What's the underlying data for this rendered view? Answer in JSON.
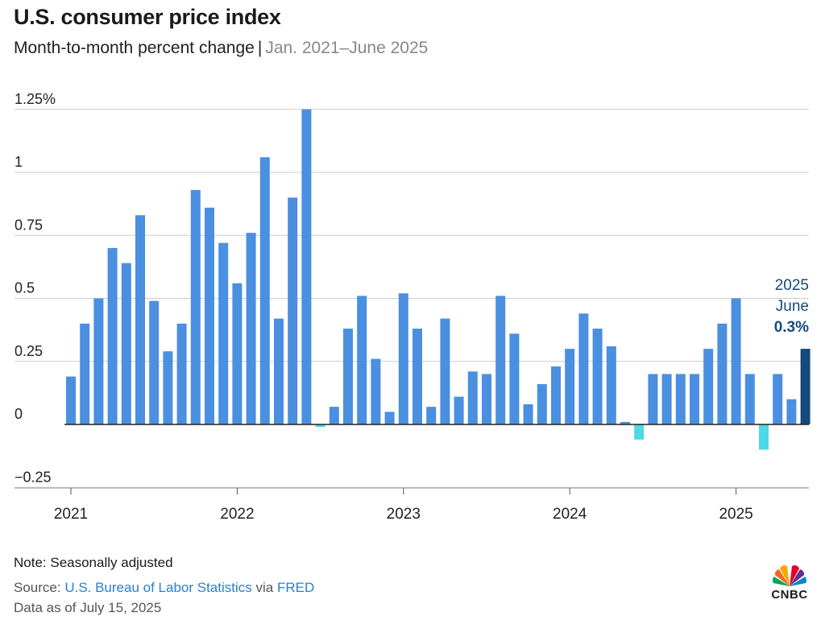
{
  "header": {
    "title": "U.S. consumer price index",
    "subtitle": "Month-to-month percent change",
    "separator": "|",
    "range": "Jan. 2021–June 2025"
  },
  "colors": {
    "positive": "#4a8fe0",
    "negative": "#4dd9e8",
    "highlight": "#174a7c",
    "grid": "#cccccc",
    "zero": "#222222"
  },
  "annotation": {
    "year": "2025",
    "month": "June",
    "value": "0.3%"
  },
  "footer": {
    "note": "Note: Seasonally adjusted",
    "source_prefix": "Source: ",
    "source_link1": "U.S. Bureau of Labor Statistics",
    "source_mid": " via ",
    "source_link2": "FRED",
    "asof": "Data as of July 15, 2025"
  },
  "logo": {
    "text": "CNBC",
    "icon": "peacock-icon"
  },
  "chart_data": {
    "type": "bar",
    "ylim": [
      -0.25,
      1.25
    ],
    "yticks": [
      -0.25,
      0,
      0.25,
      0.5,
      0.75,
      1,
      1.25
    ],
    "ytick_labels": [
      "−0.25",
      "0",
      "0.25",
      "0.5",
      "0.75",
      "1",
      "1.25%"
    ],
    "xticks": [
      {
        "label": "2021",
        "index": 0
      },
      {
        "label": "2022",
        "index": 12
      },
      {
        "label": "2023",
        "index": 24
      },
      {
        "label": "2024",
        "index": 36
      },
      {
        "label": "2025",
        "index": 48
      }
    ],
    "grid": true,
    "categories": [
      "2021-01",
      "2021-02",
      "2021-03",
      "2021-04",
      "2021-05",
      "2021-06",
      "2021-07",
      "2021-08",
      "2021-09",
      "2021-10",
      "2021-11",
      "2021-12",
      "2022-01",
      "2022-02",
      "2022-03",
      "2022-04",
      "2022-05",
      "2022-06",
      "2022-07",
      "2022-08",
      "2022-09",
      "2022-10",
      "2022-11",
      "2022-12",
      "2023-01",
      "2023-02",
      "2023-03",
      "2023-04",
      "2023-05",
      "2023-06",
      "2023-07",
      "2023-08",
      "2023-09",
      "2023-10",
      "2023-11",
      "2023-12",
      "2024-01",
      "2024-02",
      "2024-03",
      "2024-04",
      "2024-05",
      "2024-06",
      "2024-07",
      "2024-08",
      "2024-09",
      "2024-10",
      "2024-11",
      "2024-12",
      "2025-01",
      "2025-02",
      "2025-03",
      "2025-04",
      "2025-05",
      "2025-06"
    ],
    "values": [
      0.19,
      0.4,
      0.5,
      0.7,
      0.64,
      0.83,
      0.49,
      0.29,
      0.4,
      0.93,
      0.86,
      0.72,
      0.56,
      0.76,
      1.06,
      0.42,
      0.9,
      1.25,
      -0.01,
      0.07,
      0.38,
      0.51,
      0.26,
      0.05,
      0.52,
      0.38,
      0.07,
      0.42,
      0.11,
      0.21,
      0.2,
      0.51,
      0.36,
      0.08,
      0.16,
      0.23,
      0.3,
      0.44,
      0.38,
      0.31,
      0.01,
      -0.06,
      0.2,
      0.2,
      0.2,
      0.2,
      0.3,
      0.4,
      0.5,
      0.2,
      -0.1,
      0.2,
      0.1,
      0.3
    ]
  }
}
